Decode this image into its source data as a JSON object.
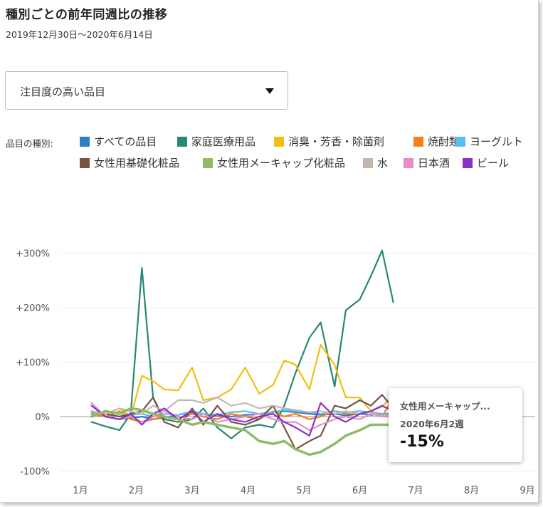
{
  "title": "種別ごとの前年同週比の推移",
  "subtitle": "2019年12月30日～2020年6月14日",
  "dropdown": {
    "value": "注目度の高い品目"
  },
  "legend_label": "品目の種別:",
  "tooltip": {
    "series": "女性用メーキャップ...",
    "date": "2020年6月2週",
    "value": "-15%"
  },
  "chart_data": {
    "type": "line",
    "ylim": [
      -100,
      300
    ],
    "yticks": [
      300,
      200,
      100,
      0,
      -100
    ],
    "ytick_labels": [
      "+300%",
      "+200%",
      "+100%",
      "0%",
      "-100%"
    ],
    "months": [
      "1月",
      "2月",
      "3月",
      "4月",
      "5月",
      "6月",
      "7月",
      "8月",
      "9月"
    ],
    "xlim": [
      0,
      8
    ],
    "x": [
      0.2,
      0.45,
      0.7,
      0.9,
      1.1,
      1.3,
      1.5,
      1.75,
      2.0,
      2.2,
      2.45,
      2.7,
      2.95,
      3.2,
      3.45,
      3.65,
      3.85,
      4.1,
      4.3,
      4.55,
      4.75,
      5.0,
      5.2,
      5.4,
      5.6
    ],
    "series": [
      {
        "name": "すべての品目",
        "color": "#2E7FC1",
        "values": [
          5,
          0,
          -5,
          -3,
          0,
          -5,
          -2,
          3,
          8,
          5,
          2,
          0,
          3,
          5,
          8,
          10,
          8,
          5,
          3,
          5,
          2,
          5,
          3,
          5,
          5
        ]
      },
      {
        "name": "家庭医療用品",
        "color": "#278773",
        "values": [
          -10,
          -18,
          -25,
          5,
          273,
          35,
          -5,
          -10,
          -5,
          15,
          -20,
          -40,
          -20,
          -15,
          -20,
          20,
          80,
          145,
          173,
          55,
          195,
          215,
          258,
          305,
          210
        ]
      },
      {
        "name": "消臭・芳香・除菌剤",
        "color": "#F4BE0E",
        "values": [
          0,
          5,
          15,
          0,
          75,
          65,
          50,
          48,
          90,
          30,
          35,
          50,
          90,
          42,
          58,
          103,
          95,
          50,
          132,
          95,
          35,
          35,
          10,
          18,
          40
        ]
      },
      {
        "name": "焼酎類",
        "color": "#F57F17",
        "values": [
          5,
          0,
          10,
          -5,
          -10,
          -5,
          0,
          -5,
          5,
          0,
          -5,
          5,
          0,
          -5,
          10,
          0,
          5,
          -5,
          0,
          10,
          5,
          5,
          10,
          0,
          35
        ]
      },
      {
        "name": "ヨーグルト",
        "color": "#5ABDF0",
        "values": [
          8,
          5,
          0,
          3,
          5,
          0,
          5,
          3,
          10,
          5,
          3,
          8,
          10,
          5,
          8,
          12,
          10,
          8,
          5,
          10,
          8,
          10,
          8,
          5,
          3
        ]
      },
      {
        "name": "女性用基礎化粧品",
        "color": "#7A5145",
        "values": [
          10,
          5,
          0,
          5,
          10,
          35,
          -10,
          -20,
          15,
          -15,
          20,
          -10,
          -15,
          -5,
          20,
          -20,
          -60,
          -45,
          -35,
          20,
          15,
          30,
          20,
          40,
          15
        ]
      },
      {
        "name": "女性用メーキャップ化粧品",
        "color": "#8EBB6A",
        "values": [
          0,
          10,
          5,
          15,
          12,
          5,
          0,
          -5,
          -15,
          -10,
          -15,
          -20,
          -25,
          -45,
          -50,
          -45,
          -60,
          -70,
          -65,
          -50,
          -35,
          -25,
          -15,
          -15,
          -15
        ]
      },
      {
        "name": "水",
        "color": "#C4B8AE",
        "values": [
          10,
          5,
          15,
          10,
          5,
          20,
          10,
          30,
          30,
          25,
          35,
          20,
          25,
          15,
          20,
          15,
          12,
          8,
          10,
          5,
          10,
          5,
          8,
          0,
          5
        ]
      },
      {
        "name": "日本酒",
        "color": "#E98DC4",
        "values": [
          25,
          0,
          -5,
          0,
          -10,
          0,
          10,
          0,
          -5,
          5,
          -10,
          -5,
          0,
          5,
          -5,
          -10,
          -10,
          -25,
          -15,
          -5,
          0,
          -5,
          5,
          0,
          0
        ]
      },
      {
        "name": "ビール",
        "color": "#8B2FC9",
        "values": [
          20,
          0,
          -5,
          5,
          -15,
          5,
          15,
          -5,
          10,
          -10,
          5,
          -5,
          -10,
          0,
          5,
          -10,
          -20,
          -35,
          25,
          0,
          -10,
          5,
          10,
          20,
          10
        ]
      }
    ]
  }
}
